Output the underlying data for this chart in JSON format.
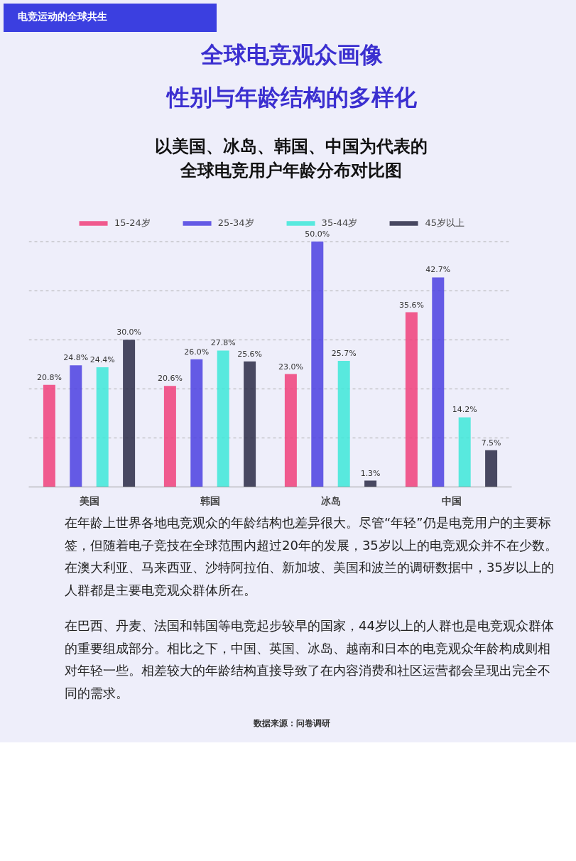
{
  "chart_data": {
    "type": "bar",
    "title": "以美国、冰岛、韩国、中国为代表的全球电竞用户年龄分布对比图",
    "categories": [
      "美国",
      "韩国",
      "冰岛",
      "中国"
    ],
    "series": [
      {
        "name": "15-24岁",
        "color": "#f0407a",
        "values": [
          20.8,
          20.6,
          23.0,
          35.6
        ],
        "value_labels": [
          "20.8%",
          "20.6%",
          "23.0%",
          "35.6%"
        ]
      },
      {
        "name": "25-34岁",
        "color": "#4b3fe0",
        "values": [
          24.8,
          26.0,
          50.0,
          42.7
        ],
        "value_labels": [
          "24.8%",
          "26.0%",
          "50.0%",
          "42.7%"
        ]
      },
      {
        "name": "35-44岁",
        "color": "#3de8d8",
        "values": [
          24.4,
          27.8,
          25.7,
          14.2
        ],
        "value_labels": [
          "24.4%",
          "27.8%",
          "25.7%",
          "14.2%"
        ]
      },
      {
        "name": "45岁以上",
        "color": "#2a2a45",
        "values": [
          30.0,
          25.6,
          1.3,
          7.5
        ],
        "value_labels": [
          "30.0%",
          "25.6%",
          "1.3%",
          "7.5%"
        ]
      }
    ],
    "yticks": [
      {
        "value": 10,
        "label": null
      },
      {
        "value": 20,
        "label": null
      },
      {
        "value": 30,
        "label": null
      },
      {
        "value": 40,
        "label": null
      },
      {
        "value": 50,
        "label": null
      }
    ],
    "grid": "y",
    "legend": "top",
    "tick_labels": "x",
    "annotations": [
      "电竞运动的全球共生",
      "全球电竞观众画像",
      "性别与年龄结构的多样化",
      "在年龄上世界各地电竞观众的年龄结构也差异很大。尽管“年轻”仍是电竞用户的主要标签，但随着电子竞技在全球范围内超过20年的发展，35岁以上的电竞观众并不在少数。在澳大利亚、马来西亚、沙特阿拉伯、新加坡、美国和波兰的调研数据中，35岁以上的人群都是主要电竞观众群体所在。",
      "在巴西、丹麦、法国和韩国等电竞起步较早的国家，44岁以上的人群也是电竞观众群体的重要组成部分。相比之下，中国、英国、冰岛、越南和日本的电竞观众年龄构成则相对年轻一些。相差较大的年龄结构直接导致了在内容消费和社区运营都会呈现出完全不同的需求。",
      "数据来源：问卷调研"
    ]
  }
}
